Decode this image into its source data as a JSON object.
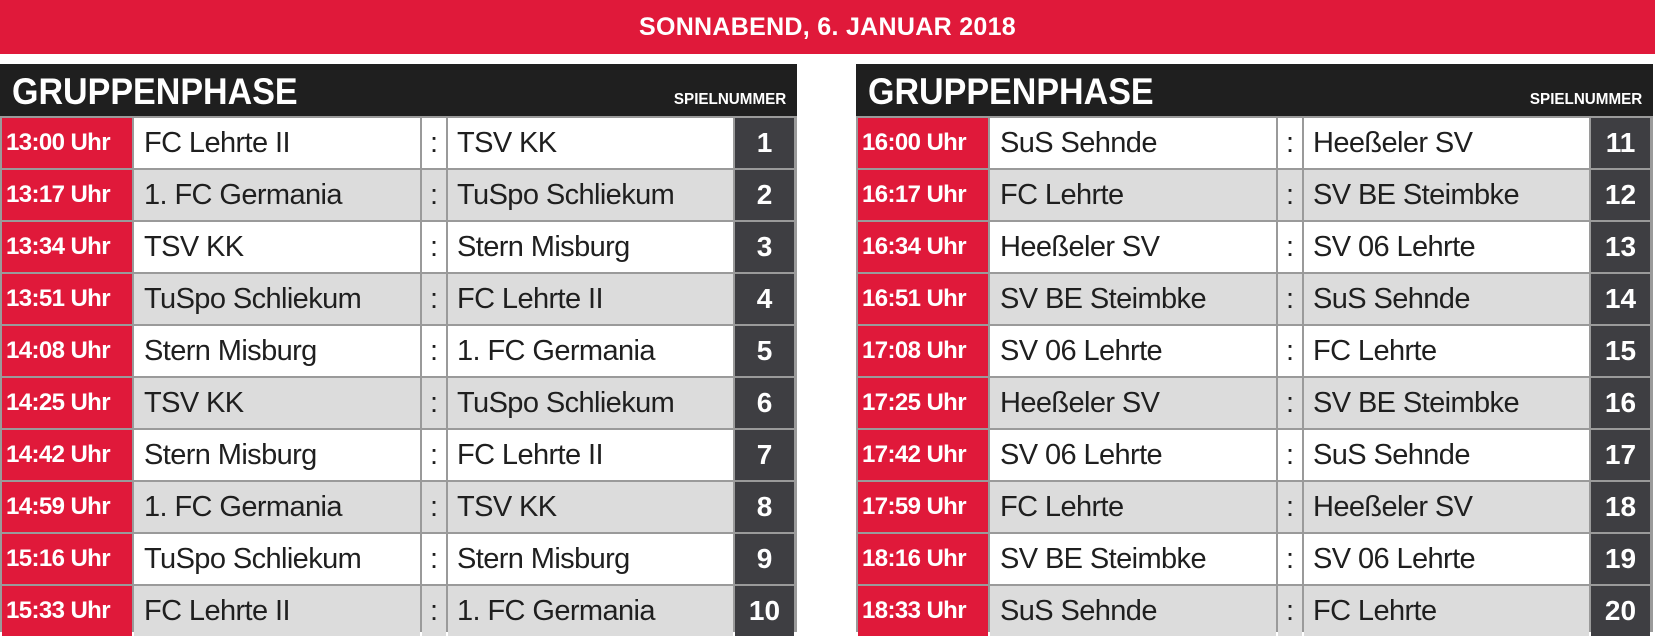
{
  "date_banner": "SONNABEND, 6. JANUAR 2018",
  "colors": {
    "accent_red": "#e0193a",
    "header_black": "#1f1f1f",
    "number_cell": "#3e3e42",
    "row_alt": "#dcdcdc"
  },
  "tables": [
    {
      "title": "GRUPPENPHASE",
      "number_header": "SPIELNUMMER",
      "matches": [
        {
          "time": "13:00 Uhr",
          "home": "FC Lehrte II",
          "sep": ":",
          "away": "TSV KK",
          "number": "1"
        },
        {
          "time": "13:17 Uhr",
          "home": "1. FC Germania",
          "sep": ":",
          "away": "TuSpo Schliekum",
          "number": "2"
        },
        {
          "time": "13:34 Uhr",
          "home": "TSV KK",
          "sep": ":",
          "away": "Stern Misburg",
          "number": "3"
        },
        {
          "time": "13:51 Uhr",
          "home": "TuSpo Schliekum",
          "sep": ":",
          "away": "FC Lehrte II",
          "number": "4"
        },
        {
          "time": "14:08 Uhr",
          "home": "Stern Misburg",
          "sep": ":",
          "away": "1. FC Germania",
          "number": "5"
        },
        {
          "time": "14:25 Uhr",
          "home": "TSV KK",
          "sep": ":",
          "away": "TuSpo Schliekum",
          "number": "6"
        },
        {
          "time": "14:42 Uhr",
          "home": "Stern Misburg",
          "sep": ":",
          "away": "FC Lehrte II",
          "number": "7"
        },
        {
          "time": "14:59 Uhr",
          "home": "1. FC Germania",
          "sep": ":",
          "away": "TSV KK",
          "number": "8"
        },
        {
          "time": "15:16 Uhr",
          "home": "TuSpo Schliekum",
          "sep": ":",
          "away": "Stern Misburg",
          "number": "9"
        },
        {
          "time": "15:33 Uhr",
          "home": "FC Lehrte II",
          "sep": ":",
          "away": "1. FC Germania",
          "number": "10"
        }
      ]
    },
    {
      "title": "GRUPPENPHASE",
      "number_header": "SPIELNUMMER",
      "matches": [
        {
          "time": "16:00 Uhr",
          "home": "SuS Sehnde",
          "sep": ":",
          "away": "Heeßeler SV",
          "number": "11"
        },
        {
          "time": "16:17 Uhr",
          "home": "FC Lehrte",
          "sep": ":",
          "away": "SV BE Steimbke",
          "number": "12"
        },
        {
          "time": "16:34 Uhr",
          "home": "Heeßeler SV",
          "sep": ":",
          "away": "SV 06 Lehrte",
          "number": "13"
        },
        {
          "time": "16:51 Uhr",
          "home": "SV BE Steimbke",
          "sep": ":",
          "away": "SuS Sehnde",
          "number": "14"
        },
        {
          "time": "17:08 Uhr",
          "home": "SV 06 Lehrte",
          "sep": ":",
          "away": "FC Lehrte",
          "number": "15"
        },
        {
          "time": "17:25 Uhr",
          "home": "Heeßeler SV",
          "sep": ":",
          "away": "SV BE Steimbke",
          "number": "16"
        },
        {
          "time": "17:42 Uhr",
          "home": "SV 06 Lehrte",
          "sep": ":",
          "away": "SuS Sehnde",
          "number": "17"
        },
        {
          "time": "17:59 Uhr",
          "home": "FC Lehrte",
          "sep": ":",
          "away": "Heeßeler SV",
          "number": "18"
        },
        {
          "time": "18:16 Uhr",
          "home": "SV BE Steimbke",
          "sep": ":",
          "away": "SV 06 Lehrte",
          "number": "19"
        },
        {
          "time": "18:33 Uhr",
          "home": "SuS Sehnde",
          "sep": ":",
          "away": "FC Lehrte",
          "number": "20"
        }
      ]
    }
  ]
}
